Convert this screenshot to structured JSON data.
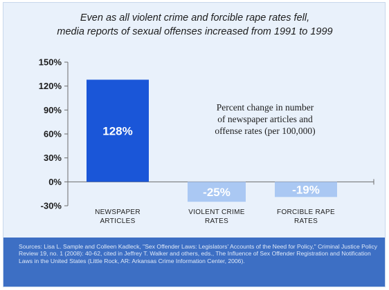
{
  "title": {
    "line1": "Even as all violent crime and forcible rape rates fell,",
    "line2": "media reports of sexual offenses increased from 1991 to 1999"
  },
  "colors": {
    "background": "#e9f1fb",
    "positive_bar": "#1a56d8",
    "negative_bar": "#aac8f3",
    "sources_bar": "#3d6fc4"
  },
  "chart_data": {
    "type": "bar",
    "categories": [
      [
        "NEWSPAPER",
        "ARTICLES"
      ],
      [
        "VIOLENT CRIME",
        "RATES"
      ],
      [
        "FORCIBLE RAPE",
        "RATES"
      ]
    ],
    "values": [
      128,
      -25,
      -19
    ],
    "data_labels": [
      "128%",
      "-25%",
      "-19%"
    ],
    "y_ticks": [
      150,
      120,
      90,
      60,
      30,
      0,
      -30
    ],
    "y_tick_labels": [
      "150%",
      "120%",
      "90%",
      "60%",
      "30%",
      "0%",
      "-30%"
    ],
    "ylim": [
      -30,
      150
    ],
    "grid": false,
    "annotation": [
      "Percent change in number",
      "of newspaper articles and",
      "offense rates (per 100,000)"
    ]
  },
  "sources": {
    "text": "Sources: Lisa L. Sample and Colleen Kadleck, \"Sex Offender Laws: Legislators' Accounts of the Need for Policy,\" Criminal Justice Policy Review 19, no. 1 (2008): 40-62, cited in Jeffrey T. Walker and others, eds., The Influence of Sex Offender Registration and Notification Laws in the United States (Little Rock, AR: Arkansas Crime Information Center, 2006)."
  }
}
